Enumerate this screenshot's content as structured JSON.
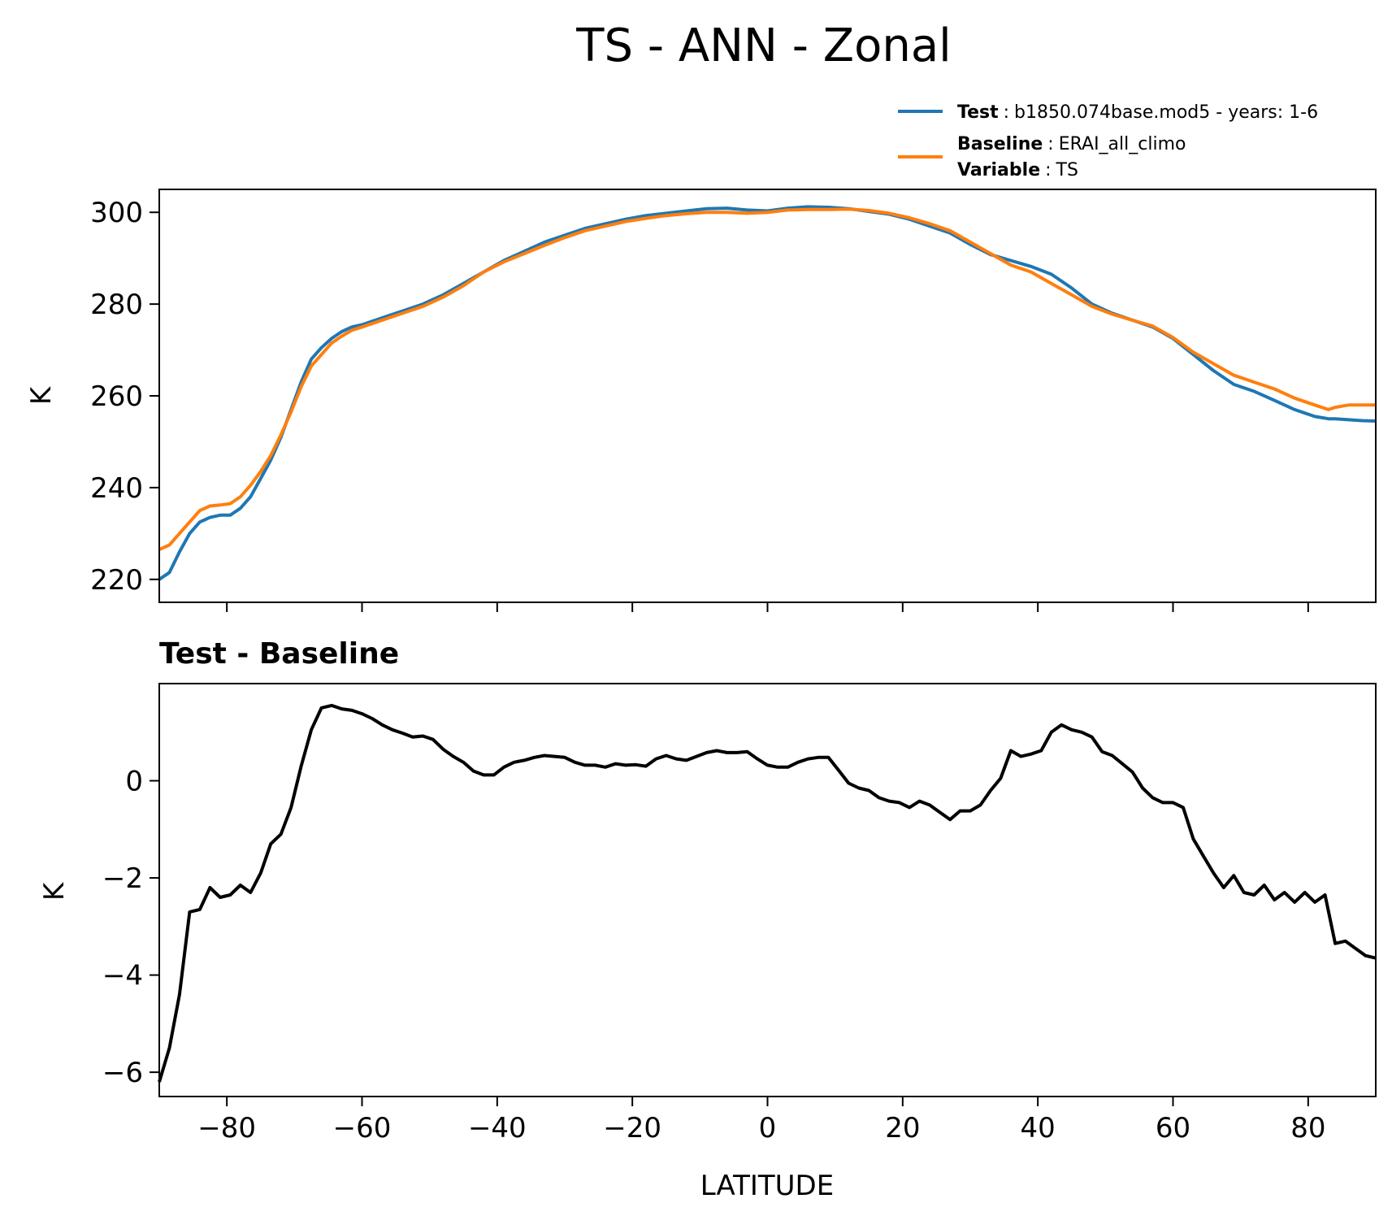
{
  "figure": {
    "title": "TS - ANN - Zonal"
  },
  "legend": {
    "entries": [
      {
        "key": "Test",
        "sep": ":",
        "value": "b1850.074base.mod5 - years: 1-6",
        "color": "#1f77b4"
      },
      {
        "key": "Baseline",
        "sep": ":",
        "value": "ERAI_all_climo",
        "color": "#ff7f0e"
      }
    ],
    "extra": {
      "key": "Variable",
      "sep": ":",
      "value": "TS"
    }
  },
  "chart_data": [
    {
      "type": "line",
      "ylabel": "K",
      "xlim": [
        -90,
        90
      ],
      "ylim": [
        215,
        305
      ],
      "xticks": [
        -80,
        -60,
        -40,
        -20,
        0,
        20,
        40,
        60,
        80
      ],
      "yticks": [
        220,
        240,
        260,
        280,
        300
      ],
      "ytick_labels": [
        "220",
        "240",
        "260",
        "280",
        "300"
      ],
      "xtick_labels_visible": false,
      "grid": false,
      "legend_position": "top-right",
      "x": [
        -90,
        -88.5,
        -87,
        -85.5,
        -84,
        -82.5,
        -81,
        -79.5,
        -78,
        -76.5,
        -75,
        -73.5,
        -72,
        -70.5,
        -69,
        -67.5,
        -66,
        -64.5,
        -63,
        -61.5,
        -60,
        -57,
        -54,
        -51,
        -48,
        -45,
        -42,
        -39,
        -36,
        -33,
        -30,
        -27,
        -24,
        -21,
        -18,
        -15,
        -12,
        -9,
        -6,
        -3,
        0,
        3,
        6,
        9,
        12,
        15,
        18,
        21,
        24,
        27,
        30,
        33,
        36,
        39,
        42,
        45,
        48,
        51,
        54,
        57,
        60,
        63,
        66,
        69,
        72,
        75,
        78,
        81,
        83,
        84,
        86,
        88,
        90
      ],
      "series": [
        {
          "name": "Test",
          "color": "#1f77b4",
          "values": [
            220,
            221.5,
            226,
            230,
            232.5,
            233.5,
            234,
            234,
            235.5,
            238,
            242,
            246,
            251,
            257,
            263,
            268,
            270.5,
            272.5,
            274,
            275,
            275.5,
            277,
            278.5,
            280,
            282,
            284.5,
            287,
            289.5,
            291.5,
            293.5,
            295,
            296.5,
            297.5,
            298.5,
            299.3,
            299.8,
            300.3,
            300.8,
            300.9,
            300.5,
            300.3,
            300.9,
            301.2,
            301.1,
            300.8,
            300.2,
            299.6,
            298.5,
            297,
            295.5,
            293,
            290.8,
            289.5,
            288.2,
            286.5,
            283.5,
            280,
            278,
            276.5,
            275,
            272.5,
            269,
            265.5,
            262.5,
            261,
            259,
            257,
            255.5,
            255,
            255,
            254.8,
            254.6,
            254.5
          ]
        },
        {
          "name": "Baseline",
          "color": "#ff7f0e",
          "values": [
            226.5,
            227.5,
            230,
            232.5,
            235,
            236,
            236.2,
            236.5,
            238,
            240.5,
            243.5,
            247,
            251.5,
            256.5,
            262,
            266.5,
            269,
            271.5,
            273,
            274.3,
            275,
            276.5,
            278,
            279.5,
            281.5,
            284,
            287,
            289.2,
            291,
            292.8,
            294.5,
            296,
            297,
            298,
            298.7,
            299.3,
            299.7,
            300,
            300,
            299.8,
            300,
            300.5,
            300.6,
            300.6,
            300.7,
            300.4,
            299.8,
            298.8,
            297.5,
            296,
            293.5,
            291,
            288.5,
            287,
            284.5,
            282,
            279.5,
            277.8,
            276.5,
            275.2,
            272.7,
            269.5,
            267,
            264.5,
            263,
            261.5,
            259.5,
            258,
            257,
            257.5,
            258,
            258,
            258
          ]
        }
      ]
    },
    {
      "type": "line",
      "title": "Test - Baseline",
      "xlabel": "LATITUDE",
      "ylabel": "K",
      "xlim": [
        -90,
        90
      ],
      "ylim": [
        -6.5,
        2
      ],
      "xticks": [
        -80,
        -60,
        -40,
        -20,
        0,
        20,
        40,
        60,
        80
      ],
      "xtick_labels": [
        "−80",
        "−60",
        "−40",
        "−20",
        "0",
        "20",
        "40",
        "60",
        "80"
      ],
      "yticks": [
        -6,
        -4,
        -2,
        0
      ],
      "ytick_labels": [
        "−6",
        "−4",
        "−2",
        "0"
      ],
      "grid": false,
      "x": [
        -90,
        -88.5,
        -87,
        -85.5,
        -84,
        -82.5,
        -81,
        -79.5,
        -78,
        -76.5,
        -75,
        -73.5,
        -72,
        -70.5,
        -69,
        -67.5,
        -66,
        -64.5,
        -63,
        -61.5,
        -60,
        -58.5,
        -57,
        -55.5,
        -54,
        -52.5,
        -51,
        -49.5,
        -48,
        -46.5,
        -45,
        -43.5,
        -42,
        -40.5,
        -39,
        -37.5,
        -36,
        -34.5,
        -33,
        -31.5,
        -30,
        -28.5,
        -27,
        -25.5,
        -24,
        -22.5,
        -21,
        -19.5,
        -18,
        -16.5,
        -15,
        -13.5,
        -12,
        -10.5,
        -9,
        -7.5,
        -6,
        -4.5,
        -3,
        -1.5,
        0,
        1.5,
        3,
        4.5,
        6,
        7.5,
        9,
        10.5,
        12,
        13.5,
        15,
        16.5,
        18,
        19.5,
        21,
        22.5,
        24,
        25.5,
        27,
        28.5,
        30,
        31.5,
        33,
        34.5,
        36,
        37.5,
        39,
        40.5,
        42,
        43.5,
        45,
        46.5,
        48,
        49.5,
        51,
        52.5,
        54,
        55.5,
        57,
        58.5,
        60,
        61.5,
        63,
        64.5,
        66,
        67.5,
        69,
        70.5,
        72,
        73.5,
        75,
        76.5,
        78,
        79.5,
        81,
        82.5,
        84,
        85.5,
        87,
        88.5,
        90
      ],
      "series": [
        {
          "color": "#000000",
          "values": [
            -6.2,
            -5.5,
            -4.4,
            -2.7,
            -2.65,
            -2.2,
            -2.4,
            -2.35,
            -2.15,
            -2.3,
            -1.9,
            -1.3,
            -1.1,
            -0.55,
            0.3,
            1.05,
            1.5,
            1.55,
            1.48,
            1.45,
            1.38,
            1.28,
            1.15,
            1.05,
            0.98,
            0.9,
            0.92,
            0.85,
            0.65,
            0.5,
            0.38,
            0.2,
            0.12,
            0.12,
            0.28,
            0.38,
            0.42,
            0.48,
            0.52,
            0.5,
            0.48,
            0.38,
            0.32,
            0.32,
            0.28,
            0.35,
            0.32,
            0.33,
            0.3,
            0.45,
            0.52,
            0.45,
            0.42,
            0.5,
            0.58,
            0.62,
            0.58,
            0.58,
            0.6,
            0.45,
            0.32,
            0.28,
            0.28,
            0.38,
            0.45,
            0.48,
            0.48,
            0.22,
            -0.05,
            -0.15,
            -0.2,
            -0.35,
            -0.42,
            -0.45,
            -0.55,
            -0.42,
            -0.5,
            -0.65,
            -0.8,
            -0.62,
            -0.62,
            -0.5,
            -0.2,
            0.05,
            0.62,
            0.5,
            0.55,
            0.62,
            1.0,
            1.15,
            1.05,
            1.0,
            0.9,
            0.6,
            0.52,
            0.35,
            0.18,
            -0.15,
            -0.35,
            -0.45,
            -0.45,
            -0.55,
            -1.2,
            -1.55,
            -1.9,
            -2.2,
            -1.95,
            -2.3,
            -2.35,
            -2.15,
            -2.45,
            -2.3,
            -2.5,
            -2.3,
            -2.5,
            -2.35,
            -3.35,
            -3.3,
            -3.45,
            -3.6,
            -3.65
          ]
        }
      ]
    }
  ]
}
